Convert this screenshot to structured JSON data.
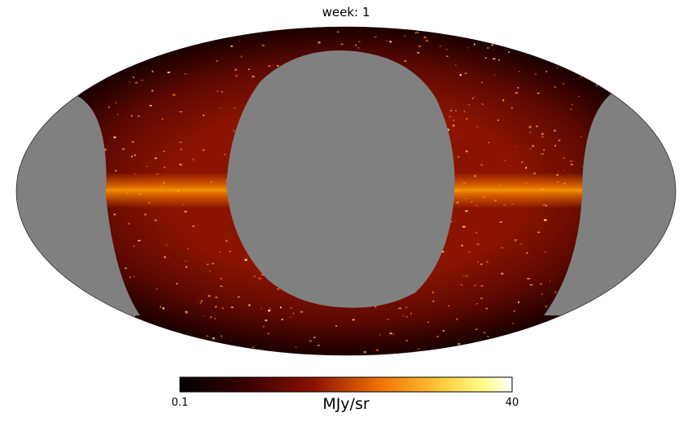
{
  "chart_data": {
    "type": "heatmap",
    "projection": "mollweide",
    "title": "week: 1",
    "colormap": "afmhot",
    "colorbar": {
      "min": 0.1,
      "max": 40,
      "min_label": "0.1",
      "max_label": "40",
      "scale": "log",
      "label": "MJy/sr"
    },
    "masked_color": "#808080",
    "grid": false,
    "features": [
      "galactic plane band (bright)",
      "unobserved regions masked in gray"
    ]
  }
}
